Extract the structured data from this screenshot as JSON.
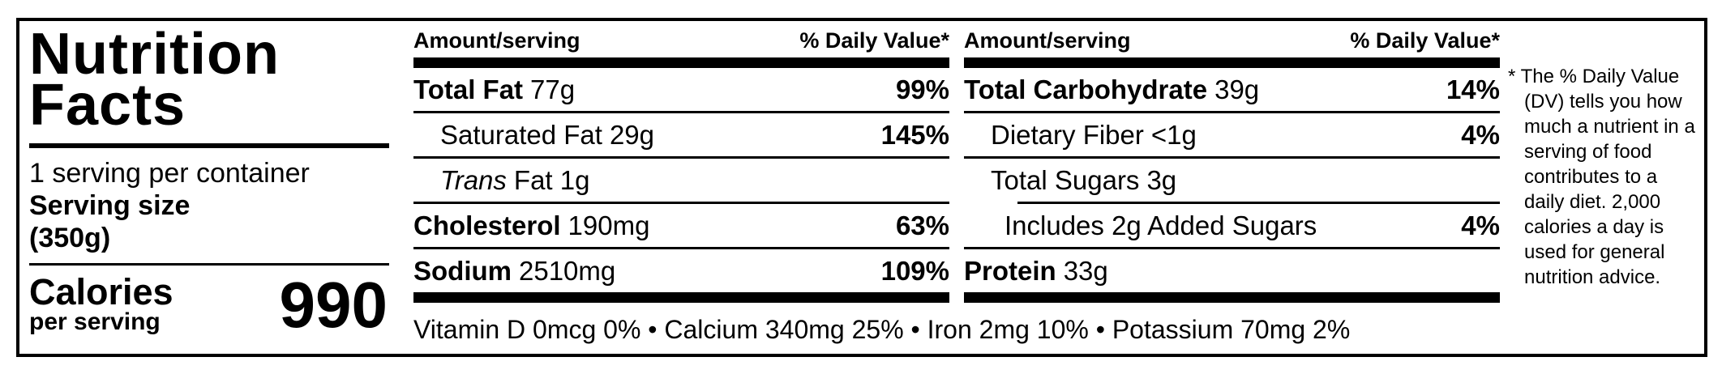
{
  "colors": {
    "ink": "#000000",
    "background": "#ffffff"
  },
  "label": {
    "title_line1": "Nutrition",
    "title_line2": "Facts",
    "servings_per_container": "1 serving per container",
    "serving_size_label": "Serving size",
    "serving_size_value": "(350g)",
    "calories_label": "Calories",
    "calories_sublabel": "per serving",
    "calories_value": "990"
  },
  "columns": [
    {
      "header_amount": "Amount/serving",
      "header_dv": "% Daily Value*",
      "rows": [
        {
          "name": "Total Fat",
          "amount": "77g",
          "dv": "99%"
        },
        {
          "name": "Saturated Fat",
          "amount": "29g",
          "dv": "145%"
        },
        {
          "name": "Trans",
          "amount": "Fat 1g",
          "dv": ""
        },
        {
          "name": "Cholesterol",
          "amount": "190mg",
          "dv": "63%"
        },
        {
          "name": "Sodium",
          "amount": "2510mg",
          "dv": "109%"
        }
      ]
    },
    {
      "header_amount": "Amount/serving",
      "header_dv": "% Daily Value*",
      "rows": [
        {
          "name": "Total Carbohydrate",
          "amount": "39g",
          "dv": "14%"
        },
        {
          "name": "Dietary Fiber",
          "amount": "<1g",
          "dv": "4%"
        },
        {
          "name": "Total Sugars",
          "amount": "3g",
          "dv": ""
        },
        {
          "name": "Includes 2g Added Sugars",
          "amount": "",
          "dv": "4%"
        },
        {
          "name": "Protein",
          "amount": "33g",
          "dv": ""
        }
      ]
    }
  ],
  "vitamins_line": "Vitamin D 0mcg 0% • Calcium 340mg 25% • Iron 2mg 10% • Potassium 70mg 2%",
  "footnote": "* The % Daily Value (DV) tells you how much a nutrient in a serving of food contributes to a daily diet. 2,000 calories a day is used for general nutrition advice."
}
